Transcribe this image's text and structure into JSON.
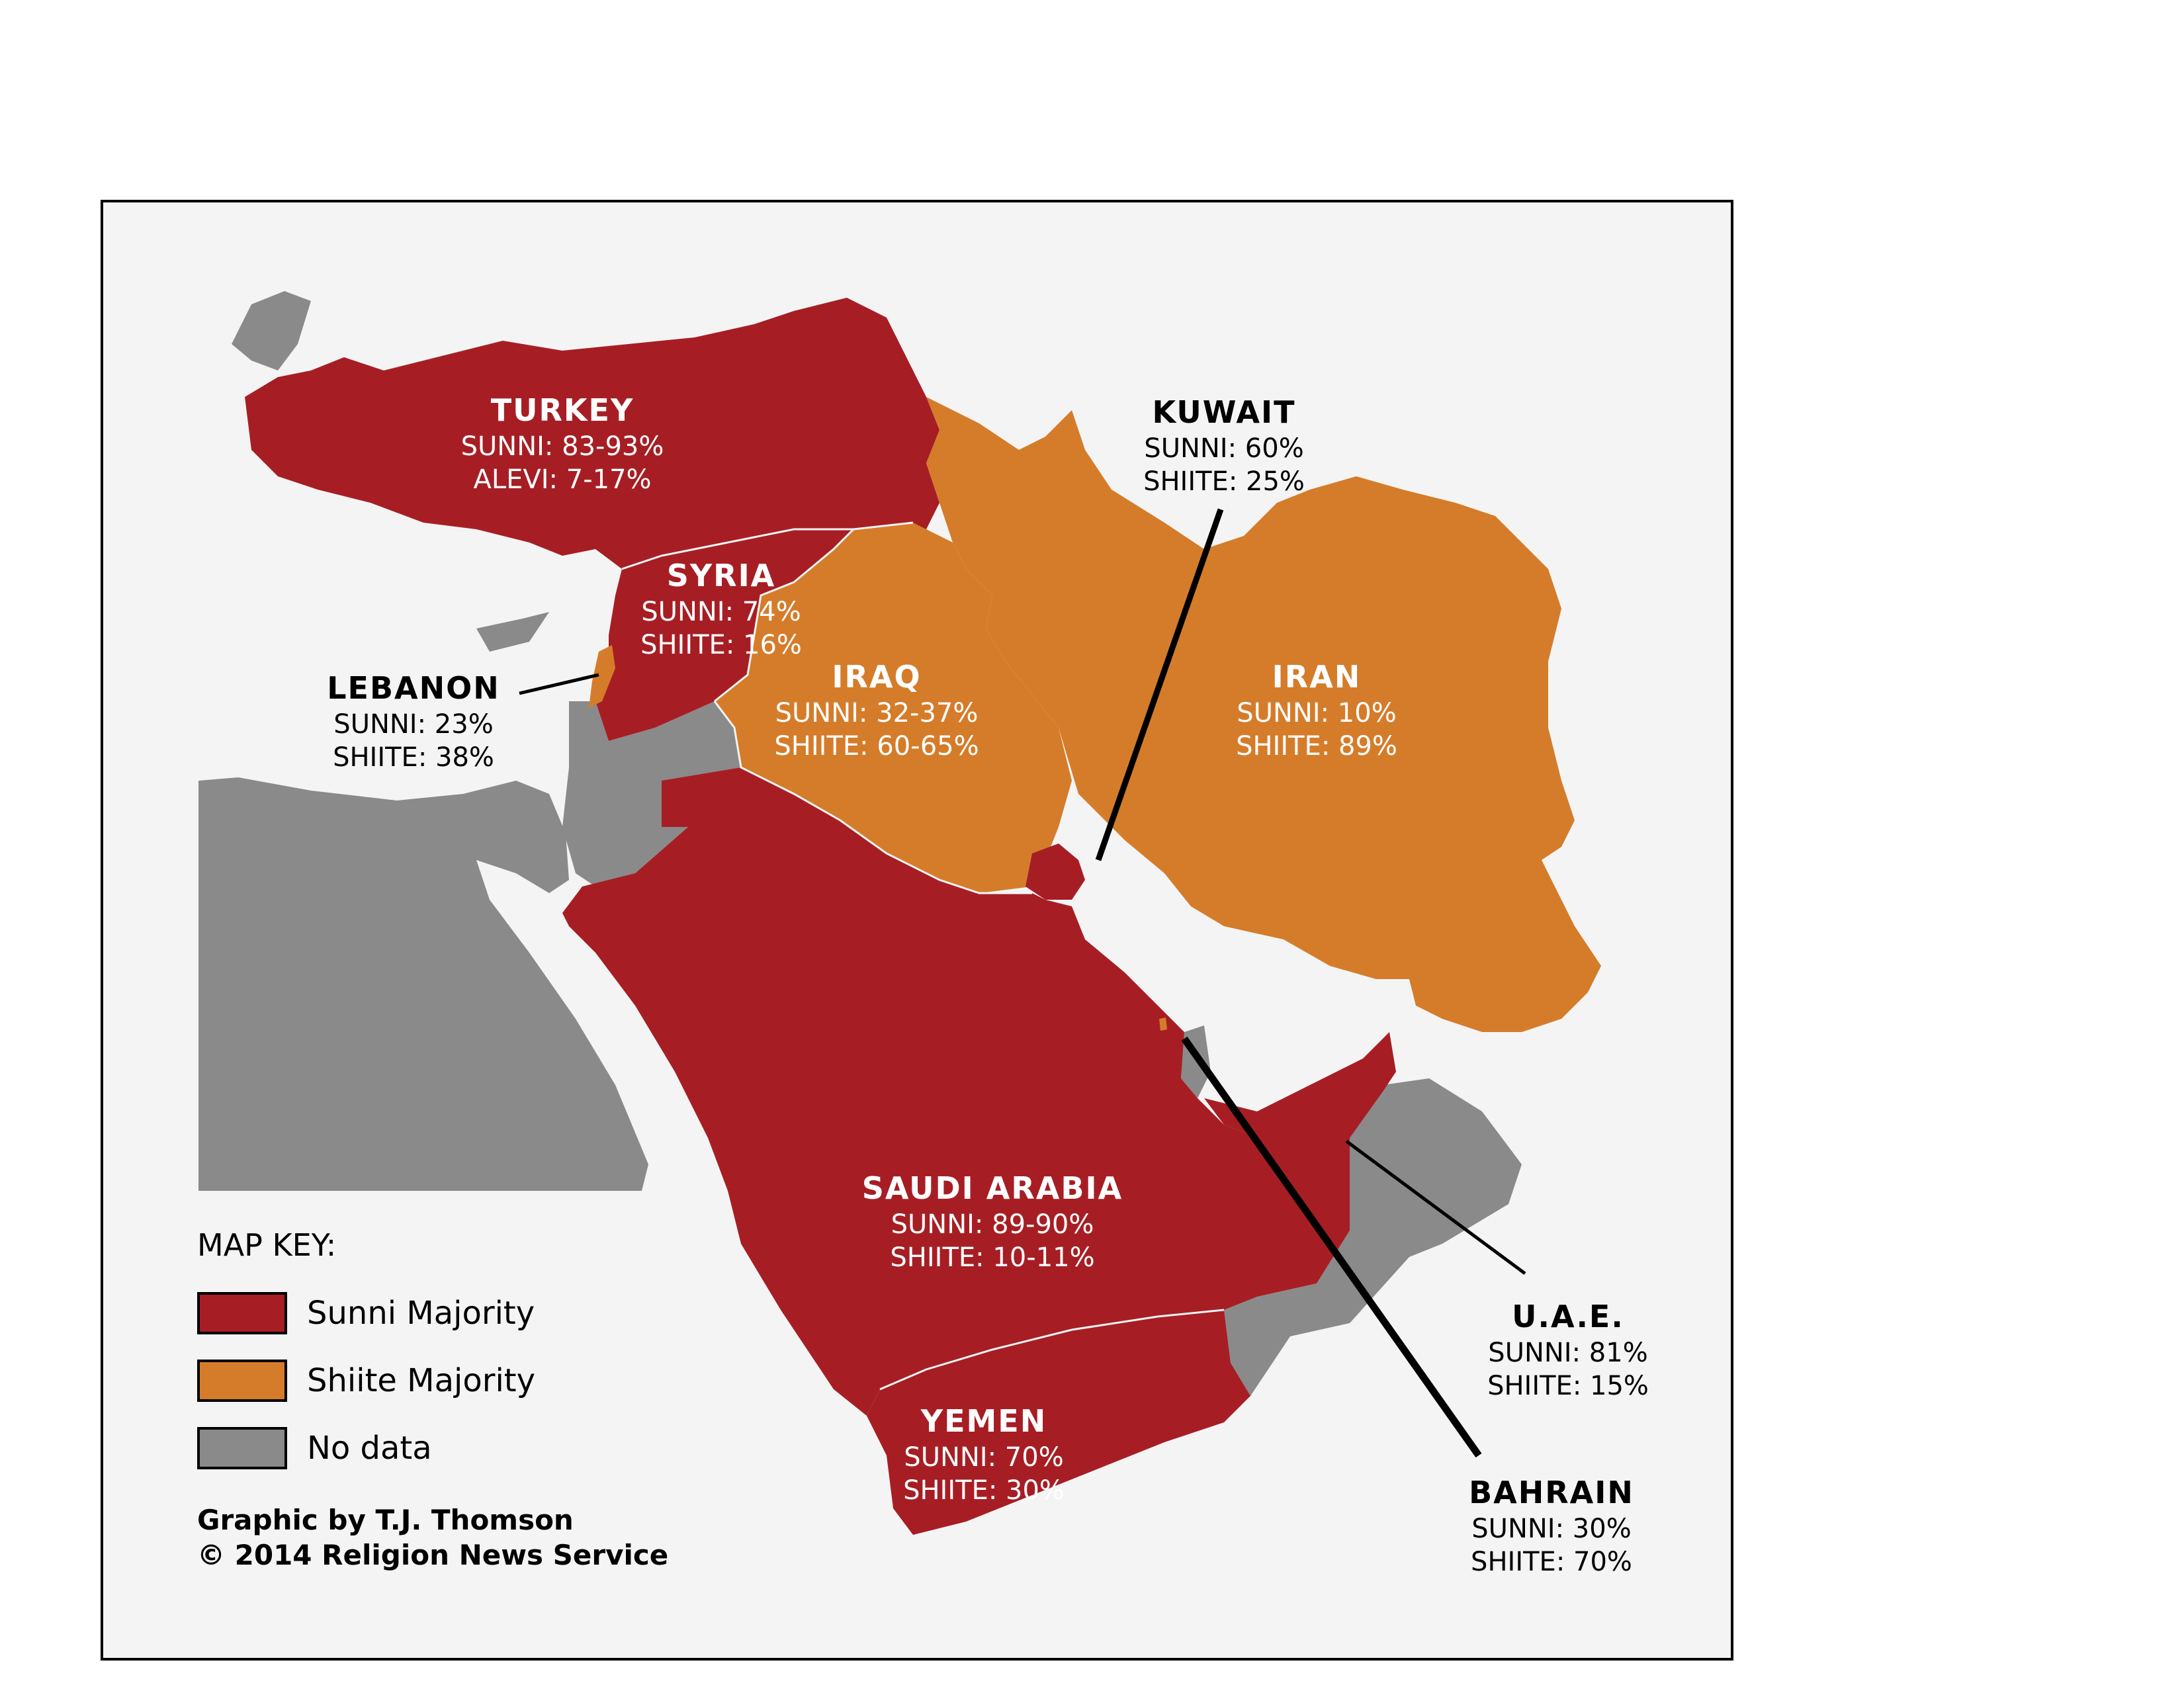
{
  "colors": {
    "sunni": "#a61e24",
    "shiite": "#d57c2a",
    "nodata": "#8a8a8a",
    "background": "#f4f4f4"
  },
  "labels": {
    "turkey": {
      "name": "TURKEY",
      "l1": "SUNNI: 83-93%",
      "l2": "ALEVI: 7-17%"
    },
    "syria": {
      "name": "SYRIA",
      "l1": "SUNNI: 74%",
      "l2": "SHIITE: 16%"
    },
    "iraq": {
      "name": "IRAQ",
      "l1": "SUNNI: 32-37%",
      "l2": "SHIITE: 60-65%"
    },
    "iran": {
      "name": "IRAN",
      "l1": "SUNNI: 10%",
      "l2": "SHIITE: 89%"
    },
    "kuwait": {
      "name": "KUWAIT",
      "l1": "SUNNI: 60%",
      "l2": "SHIITE: 25%"
    },
    "lebanon": {
      "name": "LEBANON",
      "l1": "SUNNI: 23%",
      "l2": "SHIITE: 38%"
    },
    "saudi": {
      "name": "SAUDI ARABIA",
      "l1": "SUNNI: 89-90%",
      "l2": "SHIITE: 10-11%"
    },
    "yemen": {
      "name": "YEMEN",
      "l1": "SUNNI: 70%",
      "l2": "SHIITE: 30%"
    },
    "uae": {
      "name": "U.A.E.",
      "l1": "SUNNI: 81%",
      "l2": "SHIITE: 15%"
    },
    "bahrain": {
      "name": "BAHRAIN",
      "l1": "SUNNI: 30%",
      "l2": "SHIITE: 70%"
    }
  },
  "key": {
    "title": "MAP KEY:",
    "items": [
      {
        "label": "Sunni Majority",
        "color": "#a61e24"
      },
      {
        "label": "Shiite Majority",
        "color": "#d57c2a"
      },
      {
        "label": "No data",
        "color": "#8a8a8a"
      }
    ]
  },
  "credit": {
    "line1": "Graphic by T.J. Thomson",
    "line2": "© 2014 Religion News Service"
  }
}
